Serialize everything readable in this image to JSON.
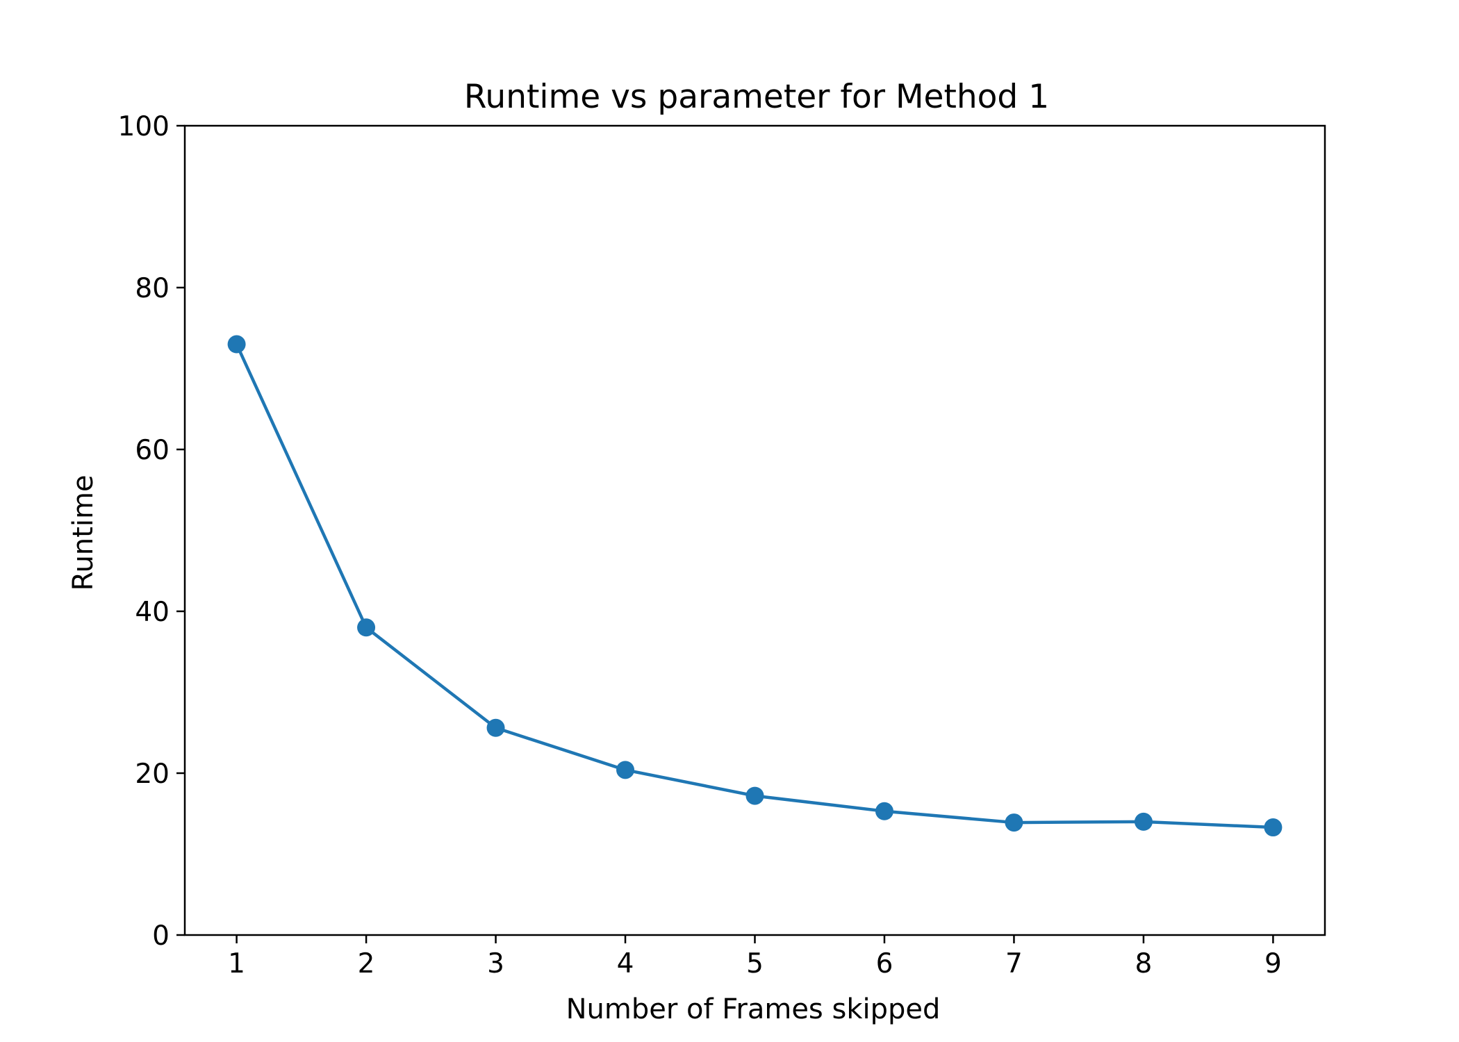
{
  "chart_data": {
    "type": "line",
    "title": "Runtime vs parameter for Method 1",
    "xlabel": "Number of Frames skipped",
    "ylabel": "Runtime",
    "x": [
      1,
      2,
      3,
      4,
      5,
      6,
      7,
      8,
      9
    ],
    "series": [
      {
        "values": [
          73.0,
          38.0,
          25.6,
          20.4,
          17.2,
          15.3,
          13.9,
          14.0,
          13.3
        ]
      }
    ],
    "xlim": [
      0.6,
      9.4
    ],
    "ylim": [
      0,
      100
    ],
    "xticks": [
      "1",
      "2",
      "3",
      "4",
      "5",
      "6",
      "7",
      "8",
      "9"
    ],
    "yticks": [
      "0",
      "20",
      "40",
      "60",
      "80",
      "100"
    ],
    "grid": false,
    "legend": false,
    "marker": "circle",
    "colors": {
      "series": "#1f77b4",
      "axes": "#000000",
      "background": "#ffffff"
    }
  }
}
